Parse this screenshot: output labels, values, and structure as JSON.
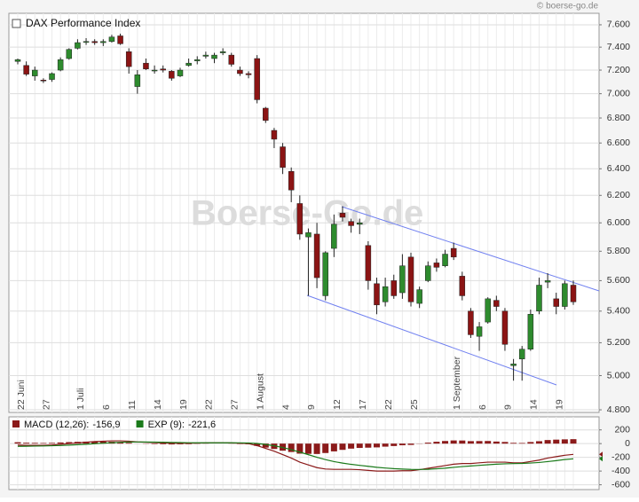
{
  "copyright": "© boerse-go.de",
  "watermark": "Boerse-Go.de",
  "chart_data": [
    {
      "type": "candlestick",
      "name": "DAX Performance Index",
      "log_scale": true,
      "grid": true,
      "up_color": "#2e8b2e",
      "down_color": "#8b1414",
      "categories": [
        "22 Juni",
        null,
        null,
        "27",
        null,
        null,
        null,
        "1 Juli",
        null,
        null,
        "6",
        null,
        null,
        "11",
        null,
        null,
        "14",
        null,
        null,
        "19",
        null,
        null,
        "22",
        null,
        null,
        "27",
        null,
        null,
        "1 August",
        null,
        null,
        "4",
        null,
        null,
        "9",
        null,
        null,
        "12",
        null,
        null,
        "17",
        null,
        null,
        "22",
        null,
        null,
        "25",
        null,
        null,
        null,
        null,
        "1 September",
        null,
        null,
        "6",
        null,
        null,
        "9",
        null,
        null,
        "14",
        null,
        null,
        "19",
        null,
        null
      ],
      "open": [
        7275,
        7240,
        7150,
        7115,
        7120,
        7200,
        7300,
        7390,
        7445,
        7450,
        7440,
        7450,
        7500,
        7360,
        7060,
        7260,
        7200,
        7210,
        7190,
        7150,
        7240,
        7280,
        7320,
        7300,
        7350,
        7330,
        7200,
        7170,
        7300,
        6880,
        6700,
        6570,
        6380,
        6140,
        5900,
        5920,
        5500,
        5820,
        6070,
        6010,
        5990,
        5840,
        5580,
        5460,
        5600,
        5520,
        5760,
        5450,
        5600,
        5720,
        5700,
        5820,
        5630,
        5400,
        5240,
        5330,
        5470,
        5400,
        5060,
        5100,
        5160,
        5400,
        5590,
        5480,
        5430,
        5570
      ],
      "high": [
        7300,
        7275,
        7230,
        7130,
        7180,
        7310,
        7390,
        7470,
        7480,
        7470,
        7470,
        7510,
        7520,
        7390,
        7200,
        7300,
        7240,
        7240,
        7200,
        7220,
        7300,
        7320,
        7360,
        7350,
        7390,
        7350,
        7230,
        7190,
        7330,
        6890,
        6720,
        6600,
        6410,
        6200,
        5960,
        6000,
        5800,
        6060,
        6120,
        6030,
        6030,
        5870,
        5620,
        5620,
        5640,
        5780,
        5790,
        5560,
        5730,
        5750,
        5810,
        5860,
        5660,
        5420,
        5330,
        5490,
        5500,
        5420,
        5100,
        5180,
        5410,
        5620,
        5650,
        5520,
        5600,
        5600
      ],
      "low": [
        7250,
        7150,
        7110,
        7090,
        7100,
        7190,
        7290,
        7380,
        7420,
        7420,
        7410,
        7440,
        7420,
        7170,
        7000,
        7200,
        7170,
        7180,
        7110,
        7140,
        7230,
        7250,
        7300,
        7260,
        7330,
        7230,
        7150,
        7130,
        6920,
        6760,
        6560,
        6360,
        6150,
        5880,
        5500,
        5550,
        5470,
        5760,
        6010,
        5930,
        5920,
        5540,
        5380,
        5430,
        5480,
        5480,
        5430,
        5420,
        5590,
        5660,
        5690,
        5740,
        5470,
        5230,
        5150,
        5320,
        5400,
        5150,
        4970,
        4970,
        5150,
        5380,
        5550,
        5380,
        5410,
        5440
      ],
      "close": [
        7290,
        7165,
        7200,
        7110,
        7170,
        7290,
        7380,
        7440,
        7450,
        7440,
        7450,
        7490,
        7430,
        7230,
        7160,
        7210,
        7200,
        7200,
        7130,
        7200,
        7260,
        7290,
        7330,
        7330,
        7360,
        7250,
        7170,
        7160,
        6950,
        6780,
        6630,
        6410,
        6240,
        5920,
        5930,
        5620,
        5790,
        5990,
        6040,
        5980,
        6000,
        5600,
        5440,
        5560,
        5500,
        5700,
        5460,
        5540,
        5700,
        5690,
        5780,
        5760,
        5500,
        5250,
        5300,
        5480,
        5430,
        5190,
        5070,
        5160,
        5380,
        5570,
        5600,
        5430,
        5580,
        5460
      ],
      "ylim": [
        4785,
        7705
      ],
      "yticks": [
        {
          "value": 7600,
          "label": "7.600"
        },
        {
          "value": 7400,
          "label": "7.400"
        },
        {
          "value": 7200,
          "label": "7.200"
        },
        {
          "value": 7000,
          "label": "7.000"
        },
        {
          "value": 6800,
          "label": "6.800"
        },
        {
          "value": 6600,
          "label": "6.600"
        },
        {
          "value": 6400,
          "label": "6.400"
        },
        {
          "value": 6200,
          "label": "6.200"
        },
        {
          "value": 6000,
          "label": "6.000"
        },
        {
          "value": 5800,
          "label": "5.800"
        },
        {
          "value": 5600,
          "label": "5.600"
        },
        {
          "value": 5400,
          "label": "5.400"
        },
        {
          "value": 5200,
          "label": "5.200"
        },
        {
          "value": 5000,
          "label": "5.000"
        },
        {
          "value": 4800,
          "label": "4.800"
        }
      ]
    },
    {
      "type": "macd",
      "grid": true,
      "series": [
        {
          "name": "MACD (12,26):",
          "color": "#8b1a1a",
          "legend_value": {
            "value": -156.9,
            "label": "-156,9"
          },
          "values": [
            -20,
            -25,
            -25,
            -25,
            -20,
            -10,
            0,
            10,
            20,
            30,
            35,
            40,
            40,
            35,
            25,
            20,
            15,
            10,
            5,
            5,
            5,
            8,
            10,
            12,
            12,
            10,
            5,
            0,
            -30,
            -70,
            -110,
            -160,
            -210,
            -270,
            -310,
            -350,
            -370,
            -375,
            -375,
            -375,
            -380,
            -390,
            -400,
            -400,
            -400,
            -395,
            -395,
            -380,
            -360,
            -340,
            -320,
            -300,
            -290,
            -290,
            -280,
            -270,
            -270,
            -270,
            -280,
            -280,
            -260,
            -240,
            -210,
            -190,
            -170,
            -156.9
          ]
        },
        {
          "name": "EXP (9):",
          "color": "#1a7a1a",
          "legend_value": {
            "value": -221.6,
            "label": "-221,6"
          },
          "values": [
            -40,
            -38,
            -36,
            -34,
            -31,
            -27,
            -22,
            -16,
            -9,
            -1,
            6,
            13,
            19,
            23,
            24,
            23,
            22,
            20,
            17,
            15,
            13,
            12,
            12,
            12,
            12,
            12,
            11,
            9,
            2,
            -12,
            -32,
            -57,
            -88,
            -124,
            -161,
            -199,
            -233,
            -262,
            -284,
            -302,
            -317,
            -331,
            -345,
            -356,
            -365,
            -371,
            -376,
            -377,
            -374,
            -367,
            -358,
            -346,
            -335,
            -326,
            -317,
            -308,
            -300,
            -294,
            -291,
            -289,
            -283,
            -275,
            -262,
            -248,
            -232,
            -221.6
          ]
        }
      ],
      "histogram_color": "#8b1a1a",
      "histogram": [
        20,
        13,
        11,
        9,
        11,
        17,
        22,
        26,
        29,
        31,
        29,
        27,
        21,
        12,
        1,
        -3,
        -7,
        -10,
        -12,
        -10,
        -8,
        -4,
        -2,
        0,
        0,
        -2,
        -6,
        -9,
        -32,
        -58,
        -78,
        -103,
        -122,
        -146,
        -149,
        -151,
        -137,
        -113,
        -91,
        -73,
        -63,
        -59,
        -55,
        -44,
        -35,
        -24,
        -19,
        -3,
        14,
        27,
        38,
        46,
        45,
        36,
        37,
        38,
        30,
        24,
        11,
        9,
        23,
        35,
        52,
        58,
        62,
        64.7
      ],
      "ylim": [
        -670,
        390
      ],
      "yticks": [
        200,
        0,
        -200,
        -400,
        -600
      ]
    }
  ]
}
